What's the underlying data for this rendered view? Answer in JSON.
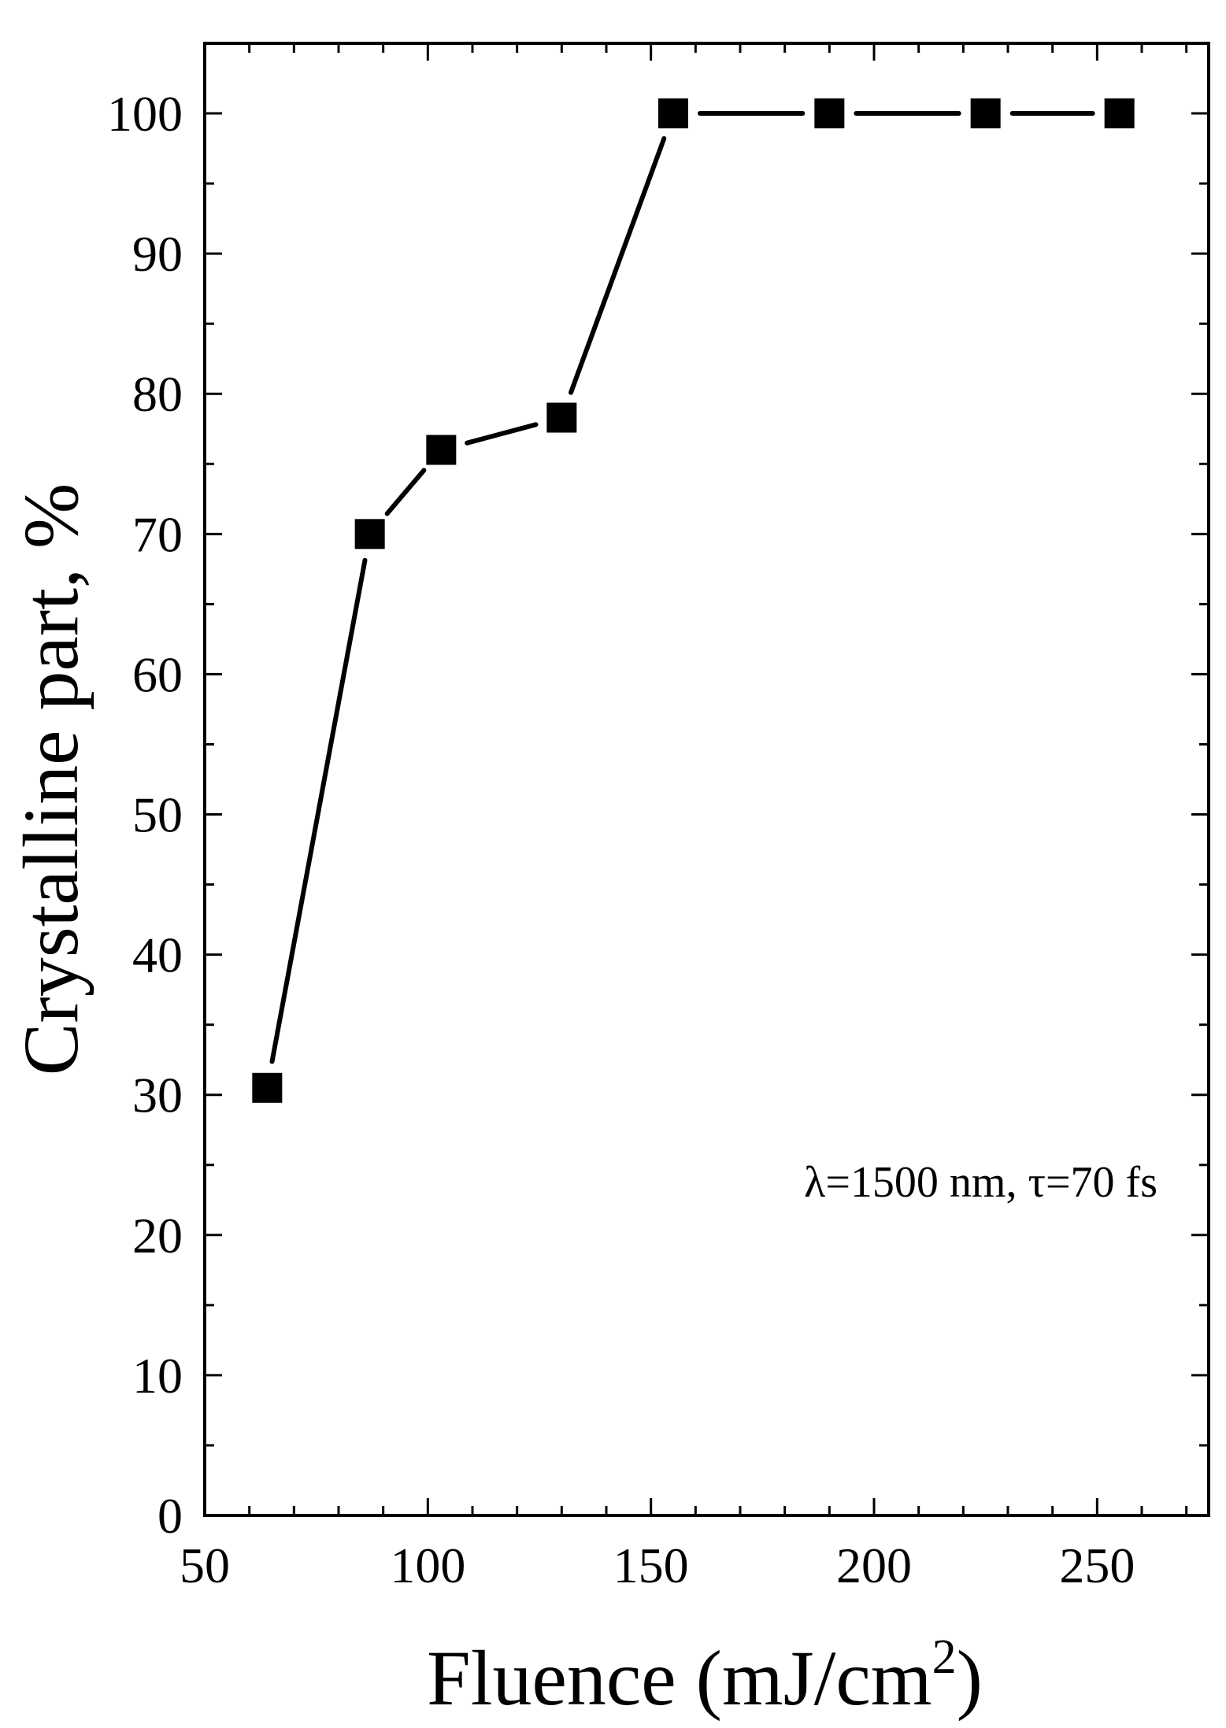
{
  "chart_data": {
    "type": "line",
    "xlabel": "Fluence (mJ/cm",
    "xlabel_sup": "2",
    "xlabel_close": ")",
    "ylabel": "Crystalline part, %",
    "annotation": "λ=1500 nm, τ=70 fs",
    "xlim": [
      50,
      275
    ],
    "ylim": [
      0,
      105
    ],
    "x_ticks": [
      50,
      100,
      150,
      200,
      250
    ],
    "x_minor_step": 10,
    "y_ticks": [
      0,
      10,
      20,
      30,
      40,
      50,
      60,
      70,
      80,
      90,
      100
    ],
    "y_minor_step": 5,
    "grid": false,
    "series": [
      {
        "marker": "square",
        "color": "#000000",
        "x": [
          64,
          87,
          103,
          130,
          155,
          190,
          225,
          255
        ],
        "y": [
          30.5,
          70,
          76,
          78.3,
          100,
          100,
          100,
          100
        ]
      }
    ]
  }
}
